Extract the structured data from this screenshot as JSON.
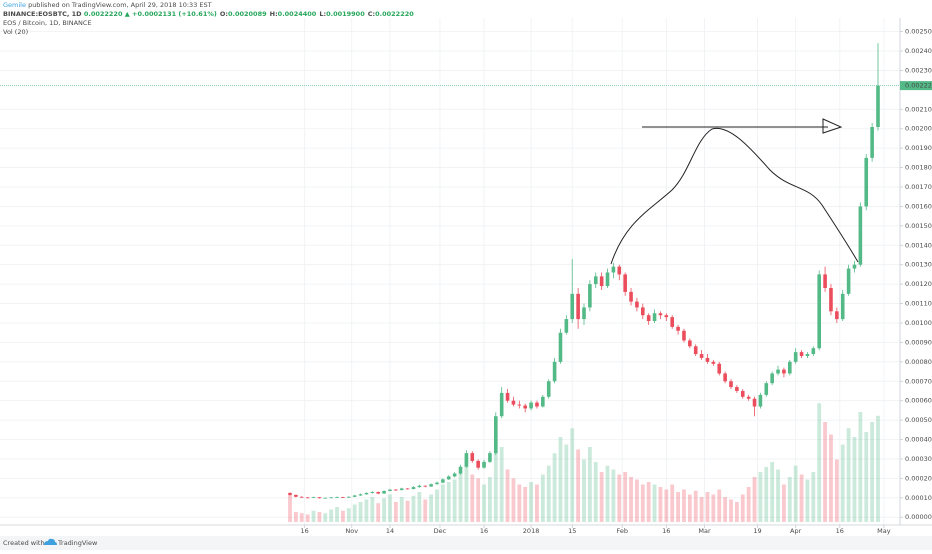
{
  "chart_data": {
    "type": "candlestick",
    "publisher": "Gemile",
    "published": "published on TradingView.com, April 29, 2018 10:33 EST",
    "symbol": "BINANCE:EOSBTC, 1D",
    "price": "0.0022220",
    "change": "▲ +0.0002131 (+10.61%)",
    "ohlc": [
      {
        "key": "O:",
        "value": "0.0020089"
      },
      {
        "key": "H:",
        "value": "0.0024400"
      },
      {
        "key": "L:",
        "value": "0.0019900"
      },
      {
        "key": "C:",
        "value": "0.0022220"
      }
    ],
    "title": "EOS / Bitcoin, 1D, BINANCE",
    "volume_label": "Vol (20)",
    "footer": "Created with",
    "brand": "TradingView",
    "up_color": "#53b987",
    "down_color": "#eb4d5c",
    "grid": true,
    "ylim": [
      -4e-05,
      0.00257
    ],
    "yticks": [
      {
        "value": 0,
        "label": "0.0000000"
      },
      {
        "value": 0.0001,
        "label": "0.0001000"
      },
      {
        "value": 0.0002,
        "label": "0.0002000"
      },
      {
        "value": 0.0003,
        "label": "0.0003000"
      },
      {
        "value": 0.0004,
        "label": "0.0004000"
      },
      {
        "value": 0.0005,
        "label": "0.0005000"
      },
      {
        "value": 0.0006,
        "label": "0.0006000"
      },
      {
        "value": 0.0007,
        "label": "0.0007000"
      },
      {
        "value": 0.0008,
        "label": "0.0008000"
      },
      {
        "value": 0.0009,
        "label": "0.0009000"
      },
      {
        "value": 0.001,
        "label": "0.0010000"
      },
      {
        "value": 0.0011,
        "label": "0.0011000"
      },
      {
        "value": 0.0012,
        "label": "0.0012000"
      },
      {
        "value": 0.0013,
        "label": "0.0013000"
      },
      {
        "value": 0.0014,
        "label": "0.0014000"
      },
      {
        "value": 0.0015,
        "label": "0.0015000"
      },
      {
        "value": 0.0016,
        "label": "0.0016000"
      },
      {
        "value": 0.0017,
        "label": "0.0017000"
      },
      {
        "value": 0.0018,
        "label": "0.0018000"
      },
      {
        "value": 0.0019,
        "label": "0.0019000"
      },
      {
        "value": 0.002,
        "label": "0.0020000"
      },
      {
        "value": 0.0021,
        "label": "0.0021000"
      },
      {
        "value": 0.0023,
        "label": "0.0023000"
      },
      {
        "value": 0.0024,
        "label": "0.0024000"
      },
      {
        "value": 0.0025,
        "label": "0.0025000"
      }
    ],
    "last_price": {
      "value": 0.002222,
      "label": "0.0022220"
    },
    "xlim": [
      0,
      103
    ],
    "xticks": [
      {
        "value": 2.5,
        "label": "16"
      },
      {
        "value": 10.5,
        "label": "Nov"
      },
      {
        "value": 17,
        "label": "14"
      },
      {
        "value": 25.5,
        "label": "Dec"
      },
      {
        "value": 33,
        "label": "16"
      },
      {
        "value": 41,
        "label": "2018"
      },
      {
        "value": 48,
        "label": "15"
      },
      {
        "value": 56.5,
        "label": "Feb"
      },
      {
        "value": 64,
        "label": "16"
      },
      {
        "value": 70.5,
        "label": "Mar"
      },
      {
        "value": 79.5,
        "label": "19"
      },
      {
        "value": 86,
        "label": "Apr"
      },
      {
        "value": 93.5,
        "label": "16"
      },
      {
        "value": 101,
        "label": "May"
      }
    ],
    "candles": [
      [
        0.000125,
        0.000128,
        0.000112,
        0.000115
      ],
      [
        0.000115,
        0.000117,
        0.000103,
        0.000105
      ],
      [
        0.000105,
        0.000108,
        0.0001,
        0.000102
      ],
      [
        0.000102,
        0.000104,
        9.8e-05,
        0.0001
      ],
      [
        0.0001,
        0.000106,
        9.9e-05,
        0.000103
      ],
      [
        0.000103,
        0.000104,
        9.6e-05,
        9.8e-05
      ],
      [
        9.8e-05,
        0.000102,
        9.7e-05,
        0.0001
      ],
      [
        0.0001,
        0.000104,
        9.9e-05,
        0.000102
      ],
      [
        0.000102,
        0.000107,
        0.0001,
        0.000104
      ],
      [
        0.000104,
        0.000105,
        9.9e-05,
        0.000101
      ],
      [
        0.000101,
        0.000108,
        0.0001,
        0.000105
      ],
      [
        0.000105,
        0.000115,
        0.000104,
        0.000112
      ],
      [
        0.000112,
        0.000122,
        0.00011,
        0.000118
      ],
      [
        0.000118,
        0.000128,
        0.000116,
        0.000125
      ],
      [
        0.000125,
        0.000134,
        0.000122,
        0.00013
      ],
      [
        0.00013,
        0.000132,
        0.000118,
        0.000122
      ],
      [
        0.000122,
        0.000138,
        0.00012,
        0.000135
      ],
      [
        0.000135,
        0.000146,
        0.000133,
        0.000142
      ],
      [
        0.000142,
        0.000145,
        0.000136,
        0.00014
      ],
      [
        0.00014,
        0.000152,
        0.000138,
        0.000148
      ],
      [
        0.000148,
        0.00015,
        0.000142,
        0.000145
      ],
      [
        0.000145,
        0.00016,
        0.000144,
        0.000155
      ],
      [
        0.000155,
        0.000168,
        0.000152,
        0.000162
      ],
      [
        0.000162,
        0.000164,
        0.000154,
        0.000158
      ],
      [
        0.000158,
        0.000174,
        0.000156,
        0.00017
      ],
      [
        0.00017,
        0.000184,
        0.000168,
        0.000178
      ],
      [
        0.000178,
        0.0002,
        0.000175,
        0.000195
      ],
      [
        0.000195,
        0.000216,
        0.000192,
        0.00021
      ],
      [
        0.00021,
        0.000232,
        0.000205,
        0.000225
      ],
      [
        0.000225,
        0.00027,
        0.00022,
        0.00026
      ],
      [
        0.00026,
        0.000345,
        0.000255,
        0.00033
      ],
      [
        0.00033,
        0.00034,
        0.00028,
        0.00029
      ],
      [
        0.00029,
        0.000298,
        0.000245,
        0.000255
      ],
      [
        0.000255,
        0.000295,
        0.00025,
        0.000285
      ],
      [
        0.000285,
        0.00034,
        0.00028,
        0.00033
      ],
      [
        0.00033,
        0.00054,
        0.00032,
        0.00052
      ],
      [
        0.00052,
        0.00067,
        0.00051,
        0.00064
      ],
      [
        0.00064,
        0.00066,
        0.00059,
        0.0006
      ],
      [
        0.0006,
        0.00062,
        0.00057,
        0.00058
      ],
      [
        0.00058,
        0.0006,
        0.00056,
        0.000575
      ],
      [
        0.000575,
        0.000585,
        0.00054,
        0.00056
      ],
      [
        0.00056,
        0.0006,
        0.00055,
        0.00059
      ],
      [
        0.00059,
        0.0006,
        0.00056,
        0.00057
      ],
      [
        0.00057,
        0.00063,
        0.000565,
        0.00062
      ],
      [
        0.00062,
        0.00071,
        0.00061,
        0.0007
      ],
      [
        0.0007,
        0.00082,
        0.00069,
        0.0008
      ],
      [
        0.0008,
        0.00097,
        0.00079,
        0.00095
      ],
      [
        0.00095,
        0.00104,
        0.00094,
        0.00102
      ],
      [
        0.00102,
        0.00133,
        0.001,
        0.00115
      ],
      [
        0.00115,
        0.00118,
        0.00097,
        0.00102
      ],
      [
        0.00102,
        0.0011,
        0.00099,
        0.00108
      ],
      [
        0.00108,
        0.00122,
        0.00106,
        0.0012
      ],
      [
        0.0012,
        0.00126,
        0.00118,
        0.00124
      ],
      [
        0.00124,
        0.00126,
        0.00117,
        0.00119
      ],
      [
        0.00119,
        0.00128,
        0.00118,
        0.00126
      ],
      [
        0.00126,
        0.00131,
        0.00123,
        0.00129
      ],
      [
        0.00129,
        0.0013,
        0.00122,
        0.00125
      ],
      [
        0.00125,
        0.00126,
        0.00114,
        0.00116
      ],
      [
        0.00116,
        0.00118,
        0.00109,
        0.00111
      ],
      [
        0.00111,
        0.00113,
        0.00106,
        0.00108
      ],
      [
        0.00108,
        0.0011,
        0.00102,
        0.00104
      ],
      [
        0.00104,
        0.00105,
        0.00099,
        0.00101
      ],
      [
        0.00101,
        0.00107,
        0.001,
        0.00105
      ],
      [
        0.00105,
        0.00106,
        0.00102,
        0.00104
      ],
      [
        0.00104,
        0.00105,
        0.00101,
        0.00103
      ],
      [
        0.00103,
        0.00104,
        0.00097,
        0.00098
      ],
      [
        0.00098,
        0.00099,
        0.00094,
        0.00096
      ],
      [
        0.00096,
        0.00097,
        0.0009,
        0.00091
      ],
      [
        0.00091,
        0.00092,
        0.00087,
        0.00088
      ],
      [
        0.00088,
        0.00089,
        0.00083,
        0.00084
      ],
      [
        0.00084,
        0.00086,
        0.00081,
        0.00082
      ],
      [
        0.00082,
        0.00084,
        0.00079,
        0.0008
      ],
      [
        0.0008,
        0.00081,
        0.00078,
        0.00079
      ],
      [
        0.00079,
        0.0008,
        0.00073,
        0.00074
      ],
      [
        0.00074,
        0.00075,
        0.00069,
        0.0007
      ],
      [
        0.0007,
        0.00071,
        0.00066,
        0.00067
      ],
      [
        0.00067,
        0.00068,
        0.00064,
        0.00065
      ],
      [
        0.00065,
        0.00066,
        0.00061,
        0.00062
      ],
      [
        0.00062,
        0.00063,
        0.0006,
        0.00061
      ],
      [
        0.00061,
        0.00062,
        0.00052,
        0.00057
      ],
      [
        0.00057,
        0.00064,
        0.00056,
        0.00063
      ],
      [
        0.00063,
        0.0007,
        0.00062,
        0.00069
      ],
      [
        0.00069,
        0.00075,
        0.00068,
        0.00074
      ],
      [
        0.00074,
        0.00078,
        0.00073,
        0.00076
      ],
      [
        0.00076,
        0.00077,
        0.00072,
        0.00074
      ],
      [
        0.00074,
        0.00081,
        0.00073,
        0.0008
      ],
      [
        0.0008,
        0.00087,
        0.00079,
        0.00085
      ],
      [
        0.00085,
        0.00086,
        0.00082,
        0.00083
      ],
      [
        0.00083,
        0.00085,
        0.00082,
        0.00084
      ],
      [
        0.00084,
        0.00088,
        0.00083,
        0.00087
      ],
      [
        0.00087,
        0.00127,
        0.00086,
        0.00125
      ],
      [
        0.00125,
        0.00129,
        0.00116,
        0.00118
      ],
      [
        0.00118,
        0.0012,
        0.00104,
        0.00106
      ],
      [
        0.00106,
        0.00108,
        0.001,
        0.00102
      ],
      [
        0.00102,
        0.00117,
        0.00101,
        0.00115
      ],
      [
        0.00115,
        0.0013,
        0.00114,
        0.00128
      ],
      [
        0.00128,
        0.00132,
        0.00126,
        0.0013
      ],
      [
        0.0013,
        0.00162,
        0.00129,
        0.0016
      ],
      [
        0.0016,
        0.00187,
        0.00158,
        0.00185
      ],
      [
        0.00185,
        0.00203,
        0.00183,
        0.0020089
      ],
      [
        0.0020089,
        0.00244,
        0.00199,
        0.002222
      ]
    ],
    "volumes": [
      22,
      8,
      7,
      6,
      9,
      8,
      7,
      10,
      12,
      9,
      11,
      14,
      16,
      18,
      20,
      15,
      19,
      22,
      16,
      20,
      17,
      21,
      24,
      18,
      22,
      26,
      30,
      32,
      34,
      40,
      52,
      38,
      35,
      30,
      36,
      70,
      60,
      42,
      35,
      30,
      28,
      32,
      30,
      38,
      45,
      55,
      68,
      62,
      75,
      58,
      50,
      60,
      48,
      40,
      45,
      42,
      38,
      40,
      36,
      34,
      30,
      32,
      30,
      28,
      26,
      30,
      24,
      26,
      22,
      25,
      20,
      24,
      22,
      26,
      20,
      18,
      16,
      22,
      28,
      36,
      40,
      44,
      48,
      42,
      30,
      36,
      45,
      38,
      34,
      40,
      95,
      80,
      70,
      50,
      62,
      75,
      68,
      88,
      72,
      80,
      85
    ]
  }
}
